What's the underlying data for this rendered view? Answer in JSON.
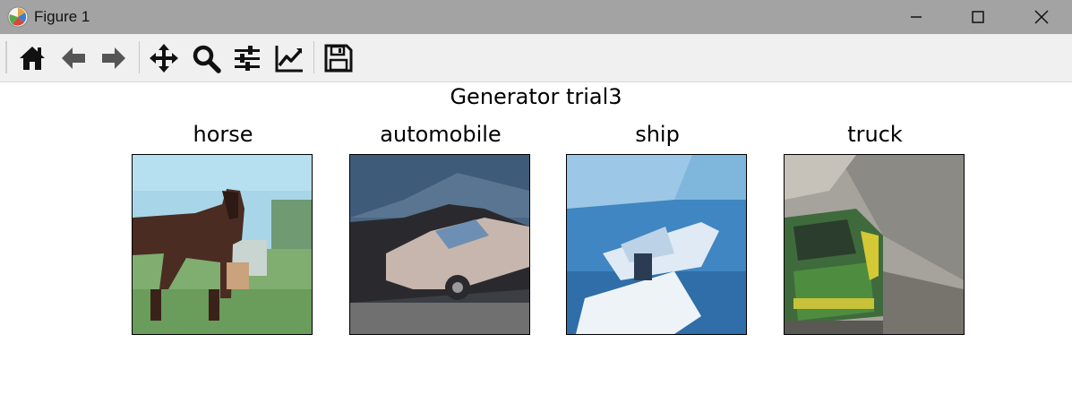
{
  "window": {
    "title": "Figure 1",
    "controls": [
      "minimize-icon",
      "maximize-icon",
      "close-icon"
    ]
  },
  "toolbar": {
    "tools": [
      {
        "name": "home",
        "icon": "home-icon"
      },
      {
        "name": "back",
        "icon": "arrow-left-icon"
      },
      {
        "name": "forward",
        "icon": "arrow-right-icon"
      },
      {
        "name": "pan",
        "icon": "move-icon"
      },
      {
        "name": "zoom",
        "icon": "magnifier-icon"
      },
      {
        "name": "configure-subplots",
        "icon": "sliders-icon"
      },
      {
        "name": "edit-axis",
        "icon": "line-chart-icon"
      },
      {
        "name": "save",
        "icon": "floppy-disk-icon"
      }
    ]
  },
  "figure": {
    "suptitle": "Generator trial3",
    "panels": [
      {
        "title": "horse"
      },
      {
        "title": "automobile"
      },
      {
        "title": "ship"
      },
      {
        "title": "truck"
      }
    ]
  }
}
